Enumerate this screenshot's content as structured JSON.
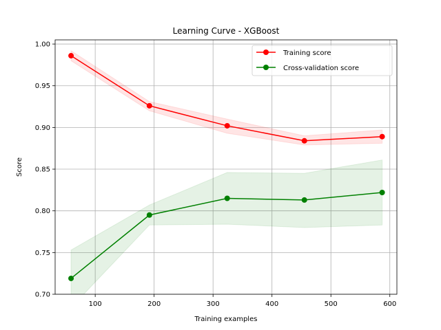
{
  "chart_data": {
    "type": "line",
    "title": "Learning Curve - XGBoost",
    "xlabel": "Training examples",
    "ylabel": "Score",
    "xlim": [
      32,
      612
    ],
    "ylim": [
      0.7,
      1.005
    ],
    "x_ticks": [
      100,
      200,
      300,
      400,
      500,
      600
    ],
    "y_ticks": [
      0.7,
      0.75,
      0.8,
      0.85,
      0.9,
      0.95,
      1.0
    ],
    "x_tick_labels": [
      "100",
      "200",
      "300",
      "400",
      "500",
      "600"
    ],
    "y_tick_labels": [
      "0.70",
      "0.75",
      "0.80",
      "0.85",
      "0.90",
      "0.95",
      "1.00"
    ],
    "grid": true,
    "legend_position": "top-right",
    "x": [
      59,
      192,
      324,
      455,
      587
    ],
    "series": [
      {
        "name": "Training score",
        "color": "#ff0000",
        "band_color": "#ff0000",
        "values": [
          0.986,
          0.926,
          0.902,
          0.884,
          0.889
        ],
        "lower": [
          0.98,
          0.92,
          0.893,
          0.879,
          0.881
        ],
        "upper": [
          0.992,
          0.931,
          0.91,
          0.89,
          0.897
        ]
      },
      {
        "name": "Cross-validation score",
        "color": "#008000",
        "band_color": "#008000",
        "values": [
          0.719,
          0.795,
          0.815,
          0.813,
          0.822
        ],
        "lower": [
          0.684,
          0.783,
          0.784,
          0.78,
          0.783
        ],
        "upper": [
          0.753,
          0.807,
          0.846,
          0.845,
          0.861
        ]
      }
    ]
  }
}
